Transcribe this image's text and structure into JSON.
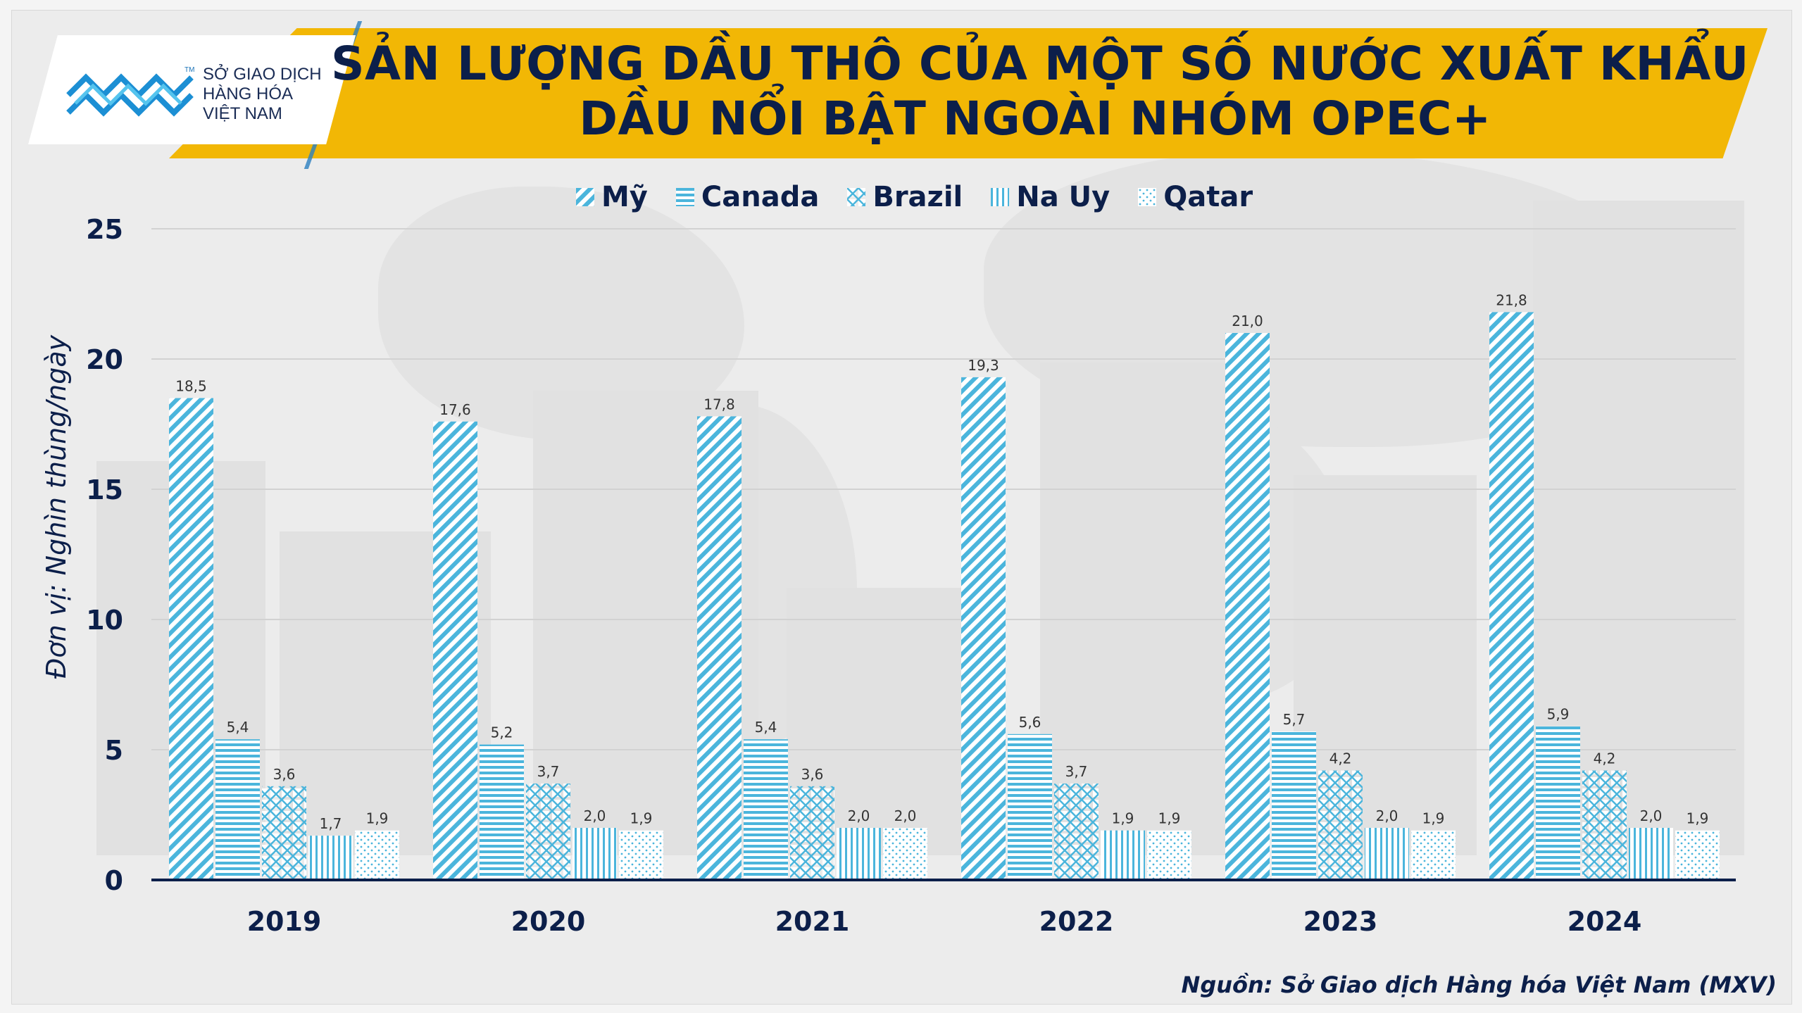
{
  "header": {
    "title_line1": "SẢN LƯỢNG DẦU THÔ CỦA MỘT SỐ NƯỚC XUẤT KHẨU",
    "title_line2": "DẦU NỔI BẬT NGOÀI NHÓM OPEC+"
  },
  "logo": {
    "line1": "SỞ GIAO DỊCH",
    "line2": "HÀNG HÓA",
    "line3": "VIỆT NAM",
    "tm": "TM"
  },
  "source": "Nguồn: Sở Giao dịch Hàng hóa Việt Nam (MXV)",
  "colors": {
    "banner": "#f2b705",
    "title": "#0c1f4a",
    "series": "#4bb5dc",
    "axis": "#0c1f4a"
  },
  "chart_data": {
    "type": "bar",
    "categories": [
      "2019",
      "2020",
      "2021",
      "2022",
      "2023",
      "2024"
    ],
    "series": [
      {
        "name": "Mỹ",
        "pattern": "diagonal-stripes",
        "values": [
          18.5,
          17.6,
          17.8,
          19.3,
          21.0,
          21.8
        ],
        "labels": [
          "18,5",
          "17,6",
          "17,8",
          "19,3",
          "21,0",
          "21,8"
        ]
      },
      {
        "name": "Canada",
        "pattern": "horizontal-stripes",
        "values": [
          5.4,
          5.2,
          5.4,
          5.6,
          5.7,
          5.9
        ],
        "labels": [
          "5,4",
          "5,2",
          "5,4",
          "5,6",
          "5,7",
          "5,9"
        ]
      },
      {
        "name": "Brazil",
        "pattern": "diamond-lattice",
        "values": [
          3.6,
          3.7,
          3.6,
          3.7,
          4.2,
          4.2
        ],
        "labels": [
          "3,6",
          "3,7",
          "3,6",
          "3,7",
          "4,2",
          "4,2"
        ]
      },
      {
        "name": "Na Uy",
        "pattern": "vertical-stripes",
        "values": [
          1.7,
          2.0,
          2.0,
          1.9,
          2.0,
          2.0
        ],
        "labels": [
          "1,7",
          "2,0",
          "2,0",
          "1,9",
          "2,0",
          "2,0"
        ]
      },
      {
        "name": "Qatar",
        "pattern": "dots",
        "values": [
          1.9,
          1.9,
          2.0,
          1.9,
          1.9,
          1.9
        ],
        "labels": [
          "1,9",
          "1,9",
          "2,0",
          "1,9",
          "1,9",
          "1,9"
        ]
      }
    ],
    "ylabel": "Đơn vị: Nghìn thùng/ngày",
    "xlabel": "",
    "ylim": [
      0,
      25
    ],
    "yticks": [
      0,
      5,
      10,
      15,
      20,
      25
    ],
    "grid": true,
    "legend": "top-center"
  }
}
